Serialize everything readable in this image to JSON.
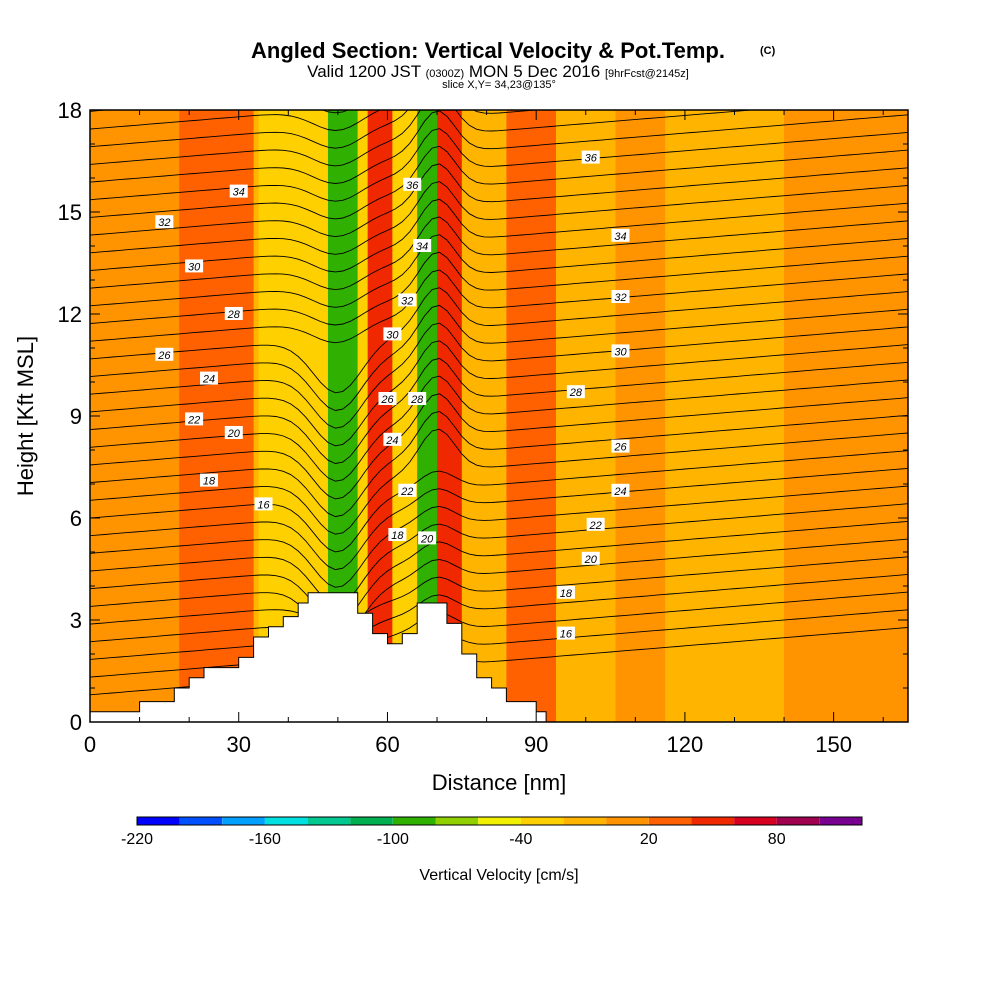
{
  "chart_data": {
    "type": "heatmap",
    "title": "Angled Section: Vertical Velocity & Pot.Temp.",
    "title_mark": "(C)",
    "subtitle": {
      "valid": "Valid 1200 JST",
      "utc": "(0300Z)",
      "date": "MON 5 Dec 2016",
      "forecast": "[9hrFcst@2145z]"
    },
    "slice_note": "slice X,Y= 34,23@135°",
    "xlabel": "Distance [nm]",
    "ylabel": "Height [Kft MSL]",
    "xlim": [
      0,
      165
    ],
    "ylim": [
      0,
      18
    ],
    "x_ticks": [
      0,
      30,
      60,
      90,
      120,
      150
    ],
    "y_ticks": [
      0,
      3,
      6,
      9,
      12,
      15,
      18
    ],
    "colorbar": {
      "label": "Vertical Velocity [cm/s]",
      "ticks": [
        -220,
        -160,
        -100,
        -40,
        20,
        80
      ],
      "min": -220,
      "step": 20,
      "colors": [
        "#0000ff",
        "#0050ff",
        "#00a0ff",
        "#00e0e0",
        "#00c890",
        "#00b050",
        "#30b000",
        "#90d000",
        "#f0f000",
        "#ffd000",
        "#ffb400",
        "#ff9400",
        "#ff6000",
        "#f02800",
        "#d80020",
        "#a00050",
        "#780090"
      ]
    },
    "terrain": [
      [
        0,
        0.3
      ],
      [
        10,
        0.3
      ],
      [
        10,
        0.6
      ],
      [
        17,
        0.6
      ],
      [
        17,
        1.0
      ],
      [
        20,
        1.0
      ],
      [
        20,
        1.3
      ],
      [
        23,
        1.3
      ],
      [
        23,
        1.6
      ],
      [
        30,
        1.6
      ],
      [
        30,
        1.9
      ],
      [
        33,
        1.9
      ],
      [
        33,
        2.5
      ],
      [
        36,
        2.5
      ],
      [
        36,
        2.8
      ],
      [
        39,
        2.8
      ],
      [
        39,
        3.1
      ],
      [
        42,
        3.1
      ],
      [
        42,
        3.5
      ],
      [
        44,
        3.5
      ],
      [
        44,
        3.8
      ],
      [
        54,
        3.8
      ],
      [
        54,
        3.2
      ],
      [
        57,
        3.2
      ],
      [
        57,
        2.6
      ],
      [
        60,
        2.6
      ],
      [
        60,
        2.3
      ],
      [
        63,
        2.3
      ],
      [
        63,
        2.6
      ],
      [
        66,
        2.6
      ],
      [
        66,
        3.5
      ],
      [
        72,
        3.5
      ],
      [
        72,
        2.9
      ],
      [
        75,
        2.9
      ],
      [
        75,
        2.0
      ],
      [
        78,
        2.0
      ],
      [
        78,
        1.3
      ],
      [
        81,
        1.3
      ],
      [
        81,
        1.0
      ],
      [
        84,
        1.0
      ],
      [
        84,
        0.6
      ],
      [
        90,
        0.6
      ],
      [
        90,
        0.3
      ],
      [
        92,
        0.3
      ],
      [
        92,
        0
      ],
      [
        165,
        0
      ],
      [
        165,
        0.3
      ]
    ],
    "velocity_bands": [
      {
        "x": 0,
        "w": 165,
        "value": -20
      },
      {
        "x": 0,
        "w": 20,
        "value": 10
      },
      {
        "x": 18,
        "w": 15,
        "value": 20
      },
      {
        "x": 34,
        "w": 14,
        "value": -30
      },
      {
        "x": 48,
        "w": 6,
        "value": -90
      },
      {
        "x": 54,
        "w": 5,
        "value": -40
      },
      {
        "x": 56,
        "w": 5,
        "value": 40
      },
      {
        "x": 61,
        "w": 5,
        "value": -30
      },
      {
        "x": 66,
        "w": 4,
        "value": -100
      },
      {
        "x": 70,
        "w": 5,
        "value": 40
      },
      {
        "x": 84,
        "w": 10,
        "value": 20
      },
      {
        "x": 94,
        "w": 12,
        "value": -10
      },
      {
        "x": 106,
        "w": 10,
        "value": 0
      },
      {
        "x": 122,
        "w": 14,
        "value": -20
      },
      {
        "x": 140,
        "w": 25,
        "value": 0
      }
    ],
    "theta_labels": [
      {
        "x": 15,
        "y": 14.7,
        "text": "32"
      },
      {
        "x": 30,
        "y": 15.6,
        "text": "34"
      },
      {
        "x": 21,
        "y": 13.4,
        "text": "30"
      },
      {
        "x": 29,
        "y": 12.0,
        "text": "28"
      },
      {
        "x": 15,
        "y": 10.8,
        "text": "26"
      },
      {
        "x": 24,
        "y": 10.1,
        "text": "24"
      },
      {
        "x": 21,
        "y": 8.9,
        "text": "22"
      },
      {
        "x": 29,
        "y": 8.5,
        "text": "20"
      },
      {
        "x": 24,
        "y": 7.1,
        "text": "18"
      },
      {
        "x": 35,
        "y": 6.4,
        "text": "16"
      },
      {
        "x": 65,
        "y": 15.8,
        "text": "36"
      },
      {
        "x": 67,
        "y": 14.0,
        "text": "34"
      },
      {
        "x": 64,
        "y": 12.4,
        "text": "32"
      },
      {
        "x": 61,
        "y": 11.4,
        "text": "30"
      },
      {
        "x": 60,
        "y": 9.5,
        "text": "26"
      },
      {
        "x": 66,
        "y": 9.5,
        "text": "28"
      },
      {
        "x": 61,
        "y": 8.3,
        "text": "24"
      },
      {
        "x": 64,
        "y": 6.8,
        "text": "22"
      },
      {
        "x": 62,
        "y": 5.5,
        "text": "18"
      },
      {
        "x": 68,
        "y": 5.4,
        "text": "20"
      },
      {
        "x": 101,
        "y": 16.6,
        "text": "36"
      },
      {
        "x": 107,
        "y": 14.3,
        "text": "34"
      },
      {
        "x": 107,
        "y": 12.5,
        "text": "32"
      },
      {
        "x": 107,
        "y": 10.9,
        "text": "30"
      },
      {
        "x": 98,
        "y": 9.7,
        "text": "28"
      },
      {
        "x": 107,
        "y": 8.1,
        "text": "26"
      },
      {
        "x": 107,
        "y": 6.8,
        "text": "24"
      },
      {
        "x": 102,
        "y": 5.8,
        "text": "22"
      },
      {
        "x": 101,
        "y": 4.8,
        "text": "20"
      },
      {
        "x": 96,
        "y": 3.8,
        "text": "18"
      },
      {
        "x": 96,
        "y": 2.6,
        "text": "16"
      }
    ]
  }
}
